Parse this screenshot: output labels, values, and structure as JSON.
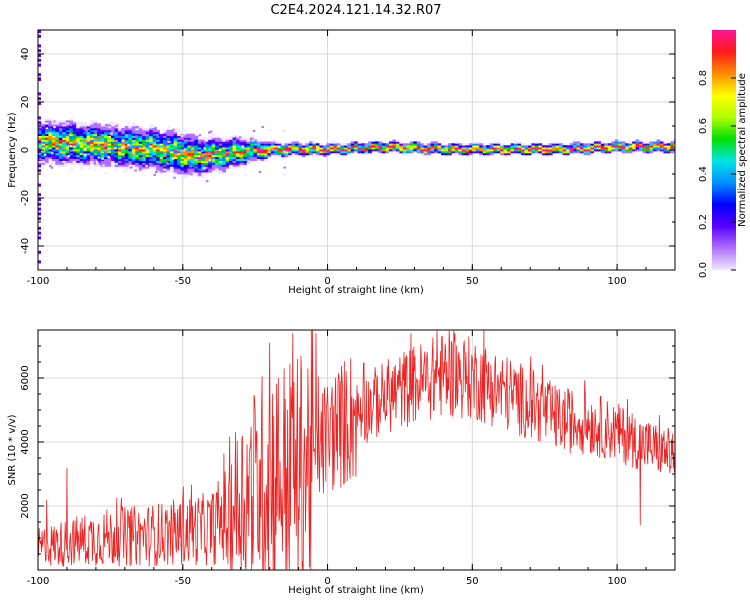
{
  "title": "C2E4.2024.121.14.32.R07",
  "colors": {
    "snr_line": "#ee2222",
    "colormap": [
      "#f0e8ff",
      "#b070ff",
      "#5a00ff",
      "#0000ff",
      "#0090ff",
      "#00e6e6",
      "#00e000",
      "#b0ff00",
      "#ffff00",
      "#ff8c00",
      "#ff1a1a",
      "#ff1493"
    ]
  },
  "chart_data": [
    {
      "type": "heatmap",
      "xlabel": "Height of straight line (km)",
      "ylabel": "Frequency (Hz)",
      "xlim": [
        -100,
        120
      ],
      "ylim": [
        -50,
        50
      ],
      "xticks": [
        -100,
        -50,
        0,
        50,
        100
      ],
      "yticks": [
        -40,
        -20,
        0,
        20,
        40
      ],
      "colorbar": {
        "label": "Normalized spectral amplitude",
        "range": [
          0,
          1
        ],
        "ticks": [
          0.0,
          0.2,
          0.4,
          0.6,
          0.8
        ]
      },
      "ridge_frequency_hz": [
        [
          -100,
          3
        ],
        [
          -80,
          2
        ],
        [
          -60,
          0
        ],
        [
          -45,
          -3
        ],
        [
          -30,
          -1
        ],
        [
          -20,
          0
        ],
        [
          0,
          0
        ],
        [
          20,
          1
        ],
        [
          40,
          0
        ],
        [
          60,
          0
        ],
        [
          80,
          0
        ],
        [
          100,
          1
        ],
        [
          120,
          1
        ]
      ],
      "ridge_spread_hz": [
        [
          -100,
          6
        ],
        [
          -50,
          6
        ],
        [
          -30,
          4
        ],
        [
          -20,
          2
        ],
        [
          0,
          1.5
        ],
        [
          120,
          1.5
        ]
      ]
    },
    {
      "type": "line",
      "xlabel": "Height of straight line (km)",
      "ylabel": "SNR (10 * v/v)",
      "xlim": [
        -100,
        120
      ],
      "ylim": [
        0,
        7500
      ],
      "xticks": [
        -100,
        -50,
        0,
        50,
        100
      ],
      "yticks": [
        2000,
        4000,
        6000
      ],
      "trend": {
        "x": [
          -100,
          -80,
          -60,
          -40,
          -30,
          -20,
          -10,
          0,
          10,
          20,
          30,
          40,
          50,
          60,
          70,
          80,
          90,
          100,
          110,
          120
        ],
        "y": [
          700,
          1000,
          1100,
          1300,
          2200,
          3000,
          3000,
          4200,
          4900,
          5400,
          5800,
          6100,
          6000,
          5600,
          5200,
          4700,
          4600,
          4300,
          3900,
          3600
        ]
      },
      "extrema": {
        "x": [
          -97,
          -90,
          -20,
          -12,
          -4,
          44,
          108
        ],
        "y": [
          2200,
          3200,
          7100,
          7400,
          7400,
          7400,
          1400
        ]
      }
    }
  ]
}
